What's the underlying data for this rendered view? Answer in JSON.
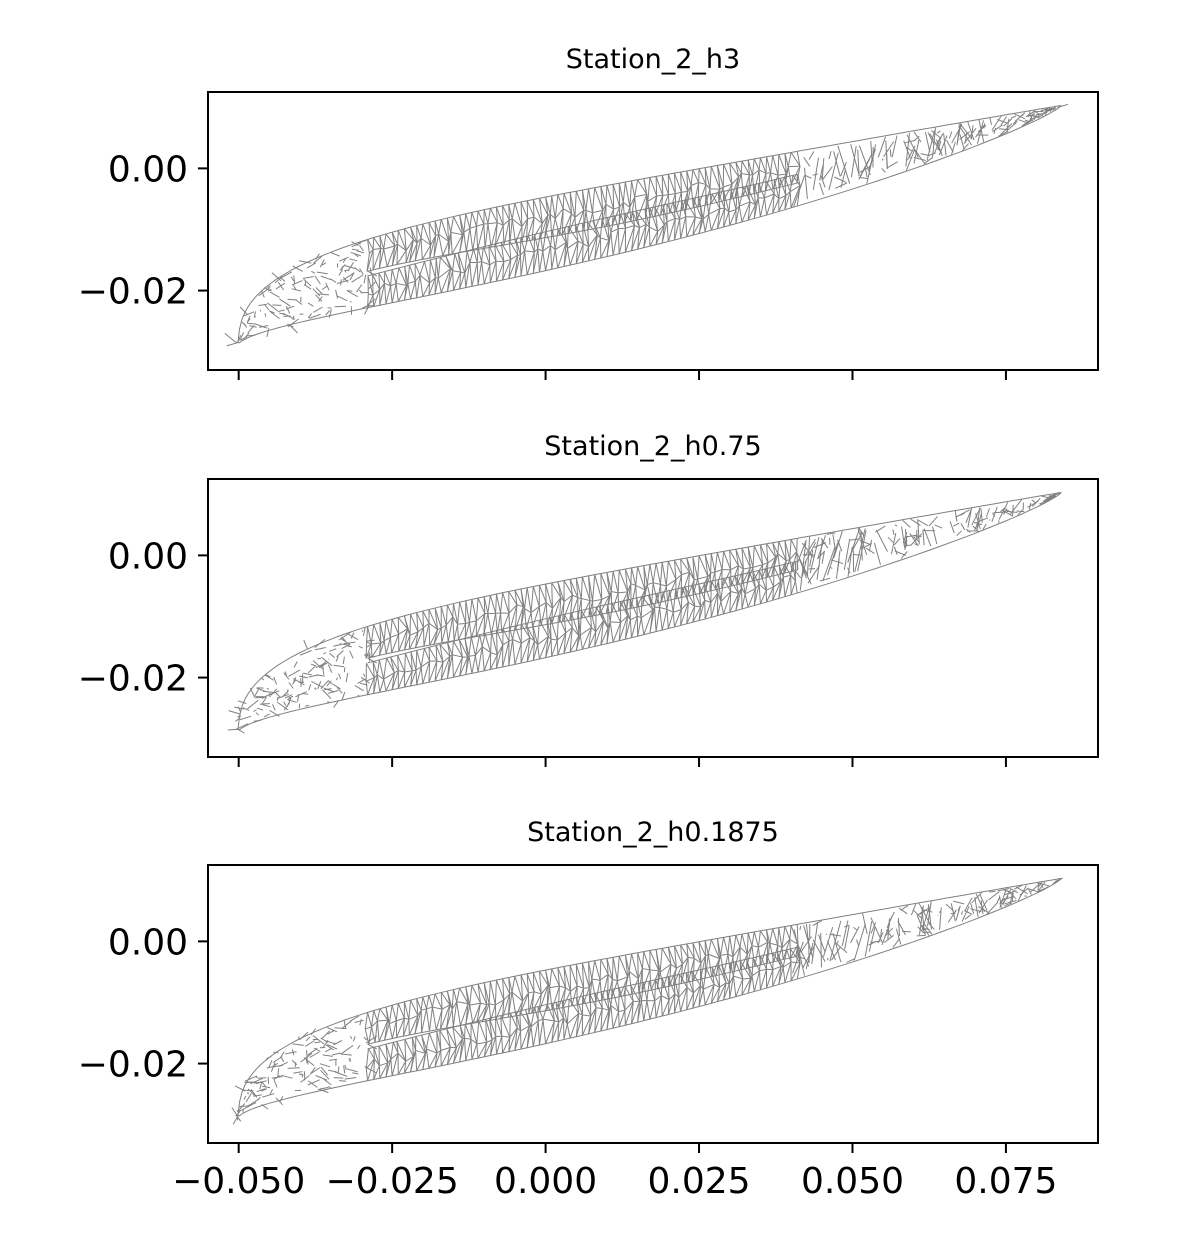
{
  "chart_data": [
    {
      "type": "mesh",
      "title": "Station_2_h3",
      "xlim": [
        -0.055,
        0.09
      ],
      "ylim": [
        -0.033,
        0.0125
      ],
      "xticks": [
        -0.05,
        -0.025,
        0.0,
        0.025,
        0.05,
        0.075
      ],
      "xtick_labels": [],
      "yticks": [
        0.0,
        -0.02
      ],
      "ytick_labels": [
        "0.00",
        "−0.02"
      ],
      "mesh_color": "#808080"
    },
    {
      "type": "mesh",
      "title": "Station_2_h0.75",
      "xlim": [
        -0.055,
        0.09
      ],
      "ylim": [
        -0.033,
        0.0125
      ],
      "xticks": [
        -0.05,
        -0.025,
        0.0,
        0.025,
        0.05,
        0.075
      ],
      "xtick_labels": [],
      "yticks": [
        0.0,
        -0.02
      ],
      "ytick_labels": [
        "0.00",
        "−0.02"
      ],
      "mesh_color": "#808080"
    },
    {
      "type": "mesh",
      "title": "Station_2_h0.1875",
      "xlim": [
        -0.055,
        0.09
      ],
      "ylim": [
        -0.033,
        0.0125
      ],
      "xticks": [
        -0.05,
        -0.025,
        0.0,
        0.025,
        0.05,
        0.075
      ],
      "xtick_labels": [
        "−0.050",
        "−0.025",
        "0.000",
        "0.025",
        "0.050",
        "0.075"
      ],
      "yticks": [
        0.0,
        -0.02
      ],
      "ytick_labels": [
        "0.00",
        "−0.02"
      ],
      "mesh_color": "#808080"
    }
  ]
}
